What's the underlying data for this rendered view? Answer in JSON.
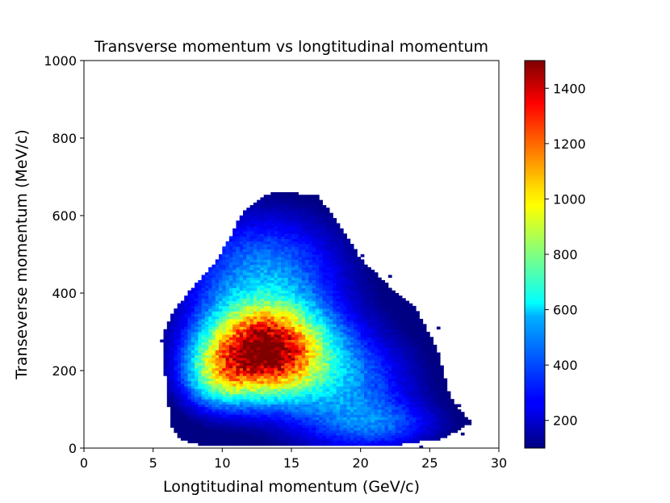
{
  "chart_data": {
    "type": "heatmap",
    "title": "Transverse momentum vs longtitudinal momentum",
    "xlabel": "Longtitudinal momentum (GeV/c)",
    "ylabel": "Transeverse momentum (MeV/c)",
    "xlim": [
      0,
      30
    ],
    "ylim": [
      0,
      1000
    ],
    "xticks": [
      "0",
      "5",
      "10",
      "15",
      "20",
      "25",
      "30"
    ],
    "yticks": [
      "0",
      "200",
      "400",
      "600",
      "800",
      "1000"
    ],
    "colormap": "jet",
    "colorbar": {
      "min": 100,
      "max": 1500,
      "ticks": [
        "200",
        "400",
        "600",
        "800",
        "1000",
        "1200",
        "1400"
      ]
    },
    "grid": false,
    "bins": {
      "x_width": 0.25,
      "y_width": 6.67
    },
    "density": {
      "components": [
        {
          "center": [
            13.0,
            250
          ],
          "sigma": [
            3.0,
            80
          ],
          "amplitude": 1420
        },
        {
          "center": [
            9.5,
            180
          ],
          "sigma": [
            1.8,
            60
          ],
          "amplitude": 420
        },
        {
          "center": [
            13.0,
            450
          ],
          "sigma": [
            4.0,
            110
          ],
          "amplitude": 420
        },
        {
          "center": [
            19.0,
            150
          ],
          "sigma": [
            3.5,
            110
          ],
          "amplitude": 380
        },
        {
          "center": [
            22.0,
            60
          ],
          "sigma": [
            3.0,
            40
          ],
          "amplitude": 200
        }
      ],
      "support_polygon": [
        [
          5.6,
          280
        ],
        [
          6.4,
          350
        ],
        [
          8.0,
          420
        ],
        [
          9.5,
          480
        ],
        [
          10.5,
          540
        ],
        [
          11.5,
          610
        ],
        [
          13.5,
          660
        ],
        [
          16.8,
          655
        ],
        [
          18.0,
          600
        ],
        [
          20.0,
          490
        ],
        [
          22.0,
          420
        ],
        [
          24.0,
          360
        ],
        [
          25.5,
          260
        ],
        [
          26.0,
          200
        ],
        [
          26.5,
          130
        ],
        [
          28.0,
          65
        ],
        [
          26.0,
          25
        ],
        [
          23.0,
          10
        ],
        [
          18.0,
          5
        ],
        [
          9.0,
          5
        ],
        [
          7.0,
          20
        ],
        [
          6.3,
          60
        ],
        [
          6.0,
          140
        ],
        [
          5.8,
          220
        ]
      ]
    }
  }
}
